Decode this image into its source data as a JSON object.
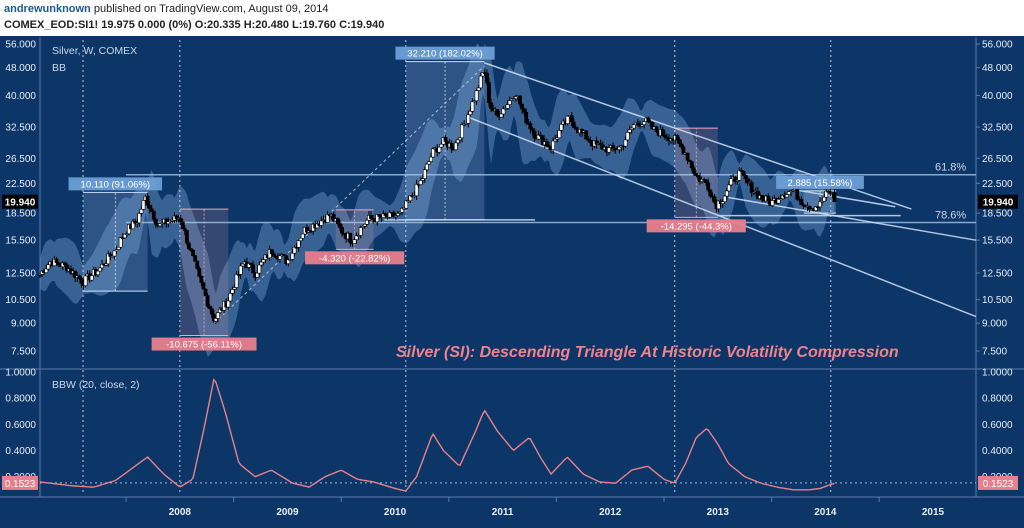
{
  "header": {
    "author": "andrewunknown",
    "published_text": "published on TradingView.com, August 09, 2014",
    "ticker": "COMEX_EOD:SI1!",
    "quote": "19.975 0.000 (0%) O:20.335 H:20.480 L:19.760 C:19.940"
  },
  "chart_data": {
    "type": "candlestick",
    "title": "Silver (SI): Descending Triangle At Historic Volatility Compression",
    "symbol_label": "Silver, W, COMEX",
    "overlay_label": "BB",
    "indicator_label": "BBW (20, close, 2)",
    "last_price": "19.940",
    "last_indicator": "0.1523",
    "x_range": [
      2007.2,
      2015.9
    ],
    "y_range_log": [
      6.8,
      57.5
    ],
    "price_ticks": [
      "56.000",
      "48.000",
      "40.000",
      "32.500",
      "26.500",
      "22.500",
      "18.500",
      "15.500",
      "12.500",
      "10.500",
      "9.000",
      "7.500"
    ],
    "indicator_ticks": [
      "1.0000",
      "0.8000",
      "0.6000",
      "0.4000",
      "0.2000"
    ],
    "indicator_range": [
      0.06,
      1.0
    ],
    "x_ticks": [
      "2008",
      "2009",
      "2010",
      "2011",
      "2012",
      "2013",
      "2014",
      "2015"
    ],
    "fib_levels": [
      {
        "label": "61.8%",
        "value": 23.8
      },
      {
        "label": "78.6%",
        "value": 17.4
      }
    ],
    "range_annotations": [
      {
        "label": "10.110 (91.06%)",
        "x0": 2007.6,
        "x1": 2008.2,
        "low": 11.1,
        "high": 21.2,
        "direction": "up"
      },
      {
        "label": "-10.675 (-56.11%)",
        "x0": 2008.5,
        "x1": 2008.95,
        "low": 8.3,
        "high": 19.0,
        "direction": "down"
      },
      {
        "label": "-4.320 (-22.82%)",
        "x0": 2009.95,
        "x1": 2010.3,
        "low": 14.6,
        "high": 18.9,
        "direction": "down"
      },
      {
        "label": "32.210 (182.02%)",
        "x0": 2010.6,
        "x1": 2011.33,
        "low": 17.7,
        "high": 49.9,
        "direction": "up"
      },
      {
        "label": "-14.295 (-44.3%)",
        "x0": 2013.1,
        "x1": 2013.5,
        "low": 18.0,
        "high": 32.3,
        "direction": "down"
      },
      {
        "label": "2.885 (15.58%)",
        "x0": 2014.3,
        "x1": 2014.6,
        "low": 18.5,
        "high": 21.4,
        "direction": "up"
      }
    ],
    "price_anchors": [
      [
        2007.2,
        12.4
      ],
      [
        2007.3,
        13.5
      ],
      [
        2007.45,
        13.0
      ],
      [
        2007.6,
        11.8
      ],
      [
        2007.75,
        12.8
      ],
      [
        2007.9,
        14.5
      ],
      [
        2008.0,
        16.5
      ],
      [
        2008.1,
        17.5
      ],
      [
        2008.18,
        20.5
      ],
      [
        2008.3,
        17.0
      ],
      [
        2008.4,
        17.6
      ],
      [
        2008.5,
        18.0
      ],
      [
        2008.58,
        15.0
      ],
      [
        2008.68,
        12.0
      ],
      [
        2008.75,
        10.5
      ],
      [
        2008.82,
        9.2
      ],
      [
        2008.95,
        10.5
      ],
      [
        2009.1,
        13.5
      ],
      [
        2009.2,
        12.5
      ],
      [
        2009.35,
        14.5
      ],
      [
        2009.5,
        13.5
      ],
      [
        2009.65,
        16.5
      ],
      [
        2009.8,
        17.5
      ],
      [
        2009.9,
        18.3
      ],
      [
        2010.0,
        16.5
      ],
      [
        2010.1,
        15.5
      ],
      [
        2010.25,
        17.8
      ],
      [
        2010.4,
        18.0
      ],
      [
        2010.55,
        18.3
      ],
      [
        2010.65,
        20.5
      ],
      [
        2010.75,
        23.0
      ],
      [
        2010.85,
        27.5
      ],
      [
        2010.95,
        29.5
      ],
      [
        2011.05,
        28.5
      ],
      [
        2011.15,
        33.5
      ],
      [
        2011.25,
        40.0
      ],
      [
        2011.33,
        47.5
      ],
      [
        2011.38,
        37.5
      ],
      [
        2011.45,
        35.0
      ],
      [
        2011.55,
        38.0
      ],
      [
        2011.62,
        41.0
      ],
      [
        2011.7,
        35.0
      ],
      [
        2011.8,
        31.0
      ],
      [
        2011.95,
        28.5
      ],
      [
        2012.05,
        32.5
      ],
      [
        2012.12,
        34.5
      ],
      [
        2012.2,
        32.0
      ],
      [
        2012.35,
        29.0
      ],
      [
        2012.5,
        28.0
      ],
      [
        2012.6,
        28.5
      ],
      [
        2012.72,
        33.0
      ],
      [
        2012.82,
        34.0
      ],
      [
        2012.9,
        32.0
      ],
      [
        2013.0,
        31.0
      ],
      [
        2013.1,
        30.0
      ],
      [
        2013.2,
        27.5
      ],
      [
        2013.3,
        23.5
      ],
      [
        2013.4,
        22.5
      ],
      [
        2013.48,
        19.5
      ],
      [
        2013.55,
        20.5
      ],
      [
        2013.62,
        22.5
      ],
      [
        2013.7,
        24.0
      ],
      [
        2013.8,
        22.0
      ],
      [
        2013.9,
        20.5
      ],
      [
        2014.0,
        19.8
      ],
      [
        2014.1,
        21.0
      ],
      [
        2014.2,
        21.5
      ],
      [
        2014.28,
        20.0
      ],
      [
        2014.38,
        19.2
      ],
      [
        2014.45,
        19.6
      ],
      [
        2014.5,
        20.8
      ],
      [
        2014.55,
        21.3
      ],
      [
        2014.6,
        19.94
      ]
    ],
    "bbw_anchors": [
      [
        2007.2,
        0.16
      ],
      [
        2007.5,
        0.13
      ],
      [
        2007.7,
        0.12
      ],
      [
        2007.9,
        0.17
      ],
      [
        2008.05,
        0.26
      ],
      [
        2008.2,
        0.35
      ],
      [
        2008.35,
        0.22
      ],
      [
        2008.5,
        0.12
      ],
      [
        2008.62,
        0.18
      ],
      [
        2008.72,
        0.55
      ],
      [
        2008.82,
        0.96
      ],
      [
        2008.92,
        0.7
      ],
      [
        2009.05,
        0.3
      ],
      [
        2009.2,
        0.2
      ],
      [
        2009.35,
        0.25
      ],
      [
        2009.55,
        0.15
      ],
      [
        2009.7,
        0.12
      ],
      [
        2009.85,
        0.2
      ],
      [
        2010.0,
        0.25
      ],
      [
        2010.15,
        0.18
      ],
      [
        2010.3,
        0.16
      ],
      [
        2010.5,
        0.11
      ],
      [
        2010.6,
        0.09
      ],
      [
        2010.7,
        0.2
      ],
      [
        2010.85,
        0.53
      ],
      [
        2010.95,
        0.4
      ],
      [
        2011.1,
        0.28
      ],
      [
        2011.25,
        0.55
      ],
      [
        2011.33,
        0.71
      ],
      [
        2011.45,
        0.55
      ],
      [
        2011.6,
        0.4
      ],
      [
        2011.75,
        0.5
      ],
      [
        2011.85,
        0.35
      ],
      [
        2011.95,
        0.22
      ],
      [
        2012.1,
        0.35
      ],
      [
        2012.25,
        0.22
      ],
      [
        2012.4,
        0.16
      ],
      [
        2012.55,
        0.15
      ],
      [
        2012.7,
        0.25
      ],
      [
        2012.85,
        0.28
      ],
      [
        2013.0,
        0.18
      ],
      [
        2013.1,
        0.15
      ],
      [
        2013.2,
        0.3
      ],
      [
        2013.3,
        0.5
      ],
      [
        2013.4,
        0.57
      ],
      [
        2013.5,
        0.45
      ],
      [
        2013.6,
        0.3
      ],
      [
        2013.75,
        0.2
      ],
      [
        2013.9,
        0.15
      ],
      [
        2014.05,
        0.12
      ],
      [
        2014.2,
        0.1
      ],
      [
        2014.35,
        0.1
      ],
      [
        2014.45,
        0.11
      ],
      [
        2014.55,
        0.14
      ],
      [
        2014.6,
        0.1523
      ]
    ]
  }
}
